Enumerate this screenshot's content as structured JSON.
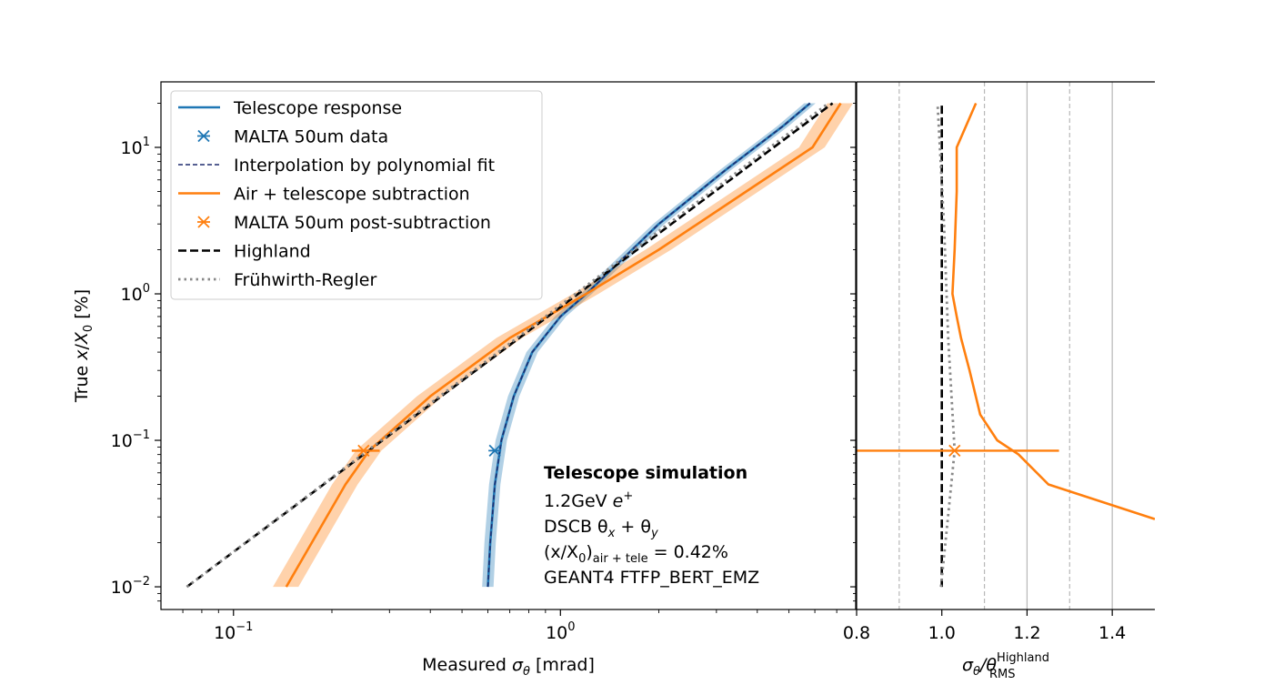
{
  "chart_data": [
    {
      "type": "line",
      "panel": "main",
      "x_scale": "log",
      "y_scale": "log",
      "xlabel": "Measured σ_θ [mrad]",
      "ylabel": "True x/X_0 [%]",
      "xlim": [
        0.06,
        8.0
      ],
      "ylim": [
        0.007,
        28
      ],
      "x_ticks": [
        {
          "value": 0.1,
          "base": "10",
          "exp": "−1"
        },
        {
          "value": 1,
          "base": "10",
          "exp": "0"
        }
      ],
      "y_ticks": [
        {
          "value": 0.01,
          "base": "10",
          "exp": "−2"
        },
        {
          "value": 0.1,
          "base": "10",
          "exp": "−1"
        },
        {
          "value": 1,
          "base": "10",
          "exp": "0"
        },
        {
          "value": 10,
          "base": "10",
          "exp": "1"
        }
      ],
      "series": [
        {
          "name": "Telescope response",
          "style": "solid",
          "color": "#1f77b4",
          "band_rel": 0.04,
          "points": [
            [
              0.6,
              0.01
            ],
            [
              0.61,
              0.02
            ],
            [
              0.63,
              0.05
            ],
            [
              0.66,
              0.1
            ],
            [
              0.72,
              0.2
            ],
            [
              0.82,
              0.4
            ],
            [
              1.0,
              0.7
            ],
            [
              1.2,
              1.0
            ],
            [
              2.0,
              3.0
            ],
            [
              3.2,
              7.0
            ],
            [
              4.8,
              14
            ],
            [
              5.8,
              20
            ]
          ]
        },
        {
          "name": "MALTA 50um data",
          "style": "marker",
          "color": "#1f77b4",
          "points": [
            [
              0.63,
              0.085
            ]
          ],
          "xerr": [
            [
              0.62,
              0.64
            ]
          ]
        },
        {
          "name": "Interpolation by polynomial fit",
          "style": "dashed-thin",
          "color": "#1f2b6e",
          "points": [
            [
              0.6,
              0.01
            ],
            [
              0.61,
              0.02
            ],
            [
              0.63,
              0.05
            ],
            [
              0.66,
              0.1
            ],
            [
              0.72,
              0.2
            ],
            [
              0.82,
              0.4
            ],
            [
              1.0,
              0.7
            ],
            [
              1.2,
              1.0
            ],
            [
              2.0,
              3.0
            ],
            [
              3.2,
              7.0
            ],
            [
              4.8,
              14
            ],
            [
              5.8,
              20
            ]
          ]
        },
        {
          "name": "Air + telescope subtraction",
          "style": "solid",
          "color": "#ff7f0e",
          "band_rel": 0.09,
          "points": [
            [
              0.145,
              0.01
            ],
            [
              0.22,
              0.05
            ],
            [
              0.26,
              0.085
            ],
            [
              0.4,
              0.2
            ],
            [
              0.7,
              0.5
            ],
            [
              1.2,
              1.0
            ],
            [
              2.0,
              2.0
            ],
            [
              3.7,
              5.0
            ],
            [
              5.9,
              10
            ],
            [
              7.2,
              20
            ]
          ]
        },
        {
          "name": "MALTA 50um post-subtraction",
          "style": "marker",
          "color": "#ff7f0e",
          "points": [
            [
              0.25,
              0.085
            ]
          ],
          "xerr": [
            [
              0.23,
              0.28
            ]
          ]
        },
        {
          "name": "Highland",
          "style": "dashed",
          "color": "#000000",
          "points": [
            [
              0.072,
              0.01
            ],
            [
              6.8,
              20
            ]
          ]
        },
        {
          "name": "Frühwirth-Regler",
          "style": "dotted",
          "color": "#888888",
          "points": [
            [
              0.072,
              0.01
            ],
            [
              6.6,
              20
            ]
          ]
        }
      ],
      "legend_position": "upper-left",
      "annotation": {
        "title": "Telescope simulation",
        "line1": "1.2GeV ",
        "line1_math": "e",
        "line1_sup": "+",
        "line2": "DSCB θ",
        "line2_sub1": "x",
        "line2_mid": " + θ",
        "line2_sub2": "y",
        "line3_pre": "(x/X",
        "line3_sub0": "0",
        "line3_close": ")",
        "line3_sub": "air + tele",
        "line3_val": " = 0.42%",
        "line4": "GEANT4 FTFP_BERT_EMZ"
      }
    },
    {
      "type": "line",
      "panel": "ratio",
      "x_scale": "linear",
      "y_scale": "log",
      "xlabel_parts": {
        "pre": "σ",
        "sub_theta": "θ",
        "mid": "/θ",
        "sup": "Highland",
        "sub": "RMS"
      },
      "xlim": [
        0.8,
        1.5
      ],
      "x_ticks": [
        0.8,
        1.0,
        1.2,
        1.4
      ],
      "x_tick_labels": [
        "0.8",
        "1.0",
        "1.2",
        "1.4"
      ],
      "gridlines_solid": [
        1.2,
        1.4
      ],
      "gridlines_dashed": [
        0.9,
        1.1,
        1.3
      ],
      "series": [
        {
          "name": "Air + telescope subtraction",
          "style": "solid",
          "color": "#ff7f0e",
          "points": [
            [
              1.5,
              0.029
            ],
            [
              1.25,
              0.05
            ],
            [
              1.18,
              0.08
            ],
            [
              1.13,
              0.1
            ],
            [
              1.09,
              0.15
            ],
            [
              1.065,
              0.3
            ],
            [
              1.045,
              0.5
            ],
            [
              1.035,
              0.7
            ],
            [
              1.025,
              1.0
            ],
            [
              1.03,
              2.0
            ],
            [
              1.035,
              5.0
            ],
            [
              1.035,
              10
            ],
            [
              1.08,
              20
            ]
          ]
        },
        {
          "name": "MALTA 50um post-subtraction",
          "style": "marker",
          "color": "#ff7f0e",
          "points": [
            [
              1.03,
              0.085
            ]
          ],
          "xerr": [
            [
              0.78,
              1.275
            ]
          ]
        },
        {
          "name": "Highland",
          "style": "dashed",
          "color": "#000000",
          "points": [
            [
              1.0,
              0.01
            ],
            [
              1.0,
              20
            ]
          ]
        },
        {
          "name": "Frühwirth-Regler",
          "style": "dotted",
          "color": "#888888",
          "points": [
            [
              0.998,
              0.01
            ],
            [
              1.03,
              0.085
            ],
            [
              1.015,
              0.5
            ],
            [
              1.005,
              3
            ],
            [
              0.99,
              20
            ]
          ]
        }
      ]
    }
  ]
}
